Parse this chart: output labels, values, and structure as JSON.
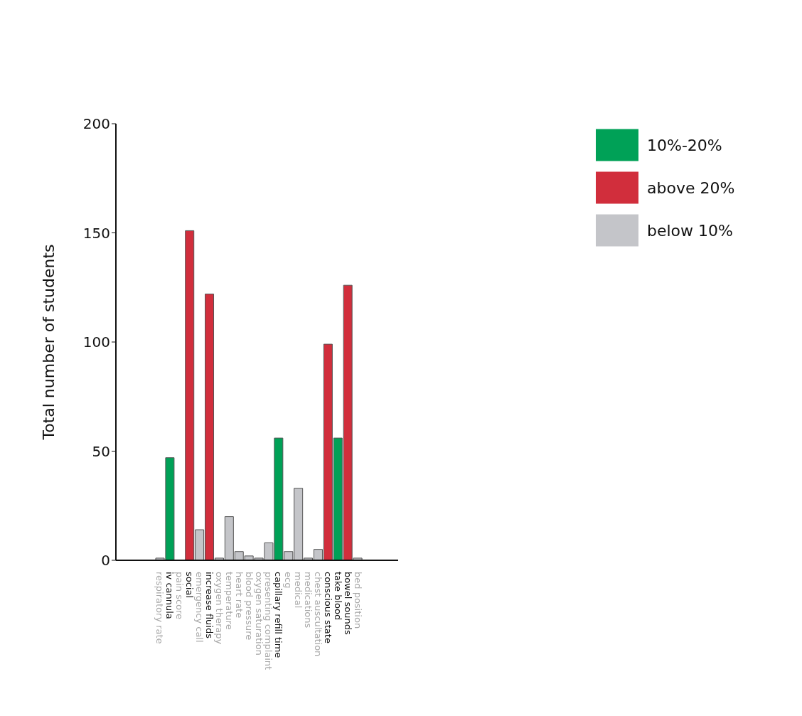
{
  "chart_data": {
    "type": "bar",
    "ylabel": "Total number of students",
    "stacked": true,
    "categories": [
      "respiratory rate",
      "iv cannula",
      "pain score",
      "social",
      "emergency call",
      "increase fluids",
      "oxygen therapy",
      "temperature",
      "heart rate",
      "blood pressure",
      "oxygen saturation",
      "presenting complaint",
      "capillary refill time",
      "ecg",
      "medical",
      "medications",
      "chest auscultation",
      "conscious state",
      "take blood",
      "bowel sounds",
      "bed position"
    ],
    "series": [
      {
        "name": "below 10%",
        "color": "#c4c5c9",
        "values": [
          1,
          null,
          0,
          null,
          14,
          null,
          1,
          20,
          4,
          2,
          1,
          8,
          null,
          4,
          33,
          1,
          5,
          null,
          null,
          null,
          1
        ]
      },
      {
        "name": "10%-20%",
        "color": "#00a157",
        "values": [
          null,
          47,
          null,
          null,
          null,
          null,
          null,
          null,
          null,
          null,
          null,
          null,
          56,
          null,
          null,
          null,
          null,
          null,
          56,
          null,
          null
        ]
      },
      {
        "name": "above 20%",
        "color": "#d12e3c",
        "values": [
          null,
          null,
          null,
          151,
          null,
          122,
          null,
          null,
          null,
          null,
          null,
          null,
          null,
          null,
          null,
          null,
          null,
          99,
          null,
          126,
          null
        ]
      }
    ],
    "ylim": [
      0,
      200
    ],
    "yticks": [
      0,
      50,
      100,
      150,
      200
    ],
    "grid": false,
    "legend": "top right"
  }
}
